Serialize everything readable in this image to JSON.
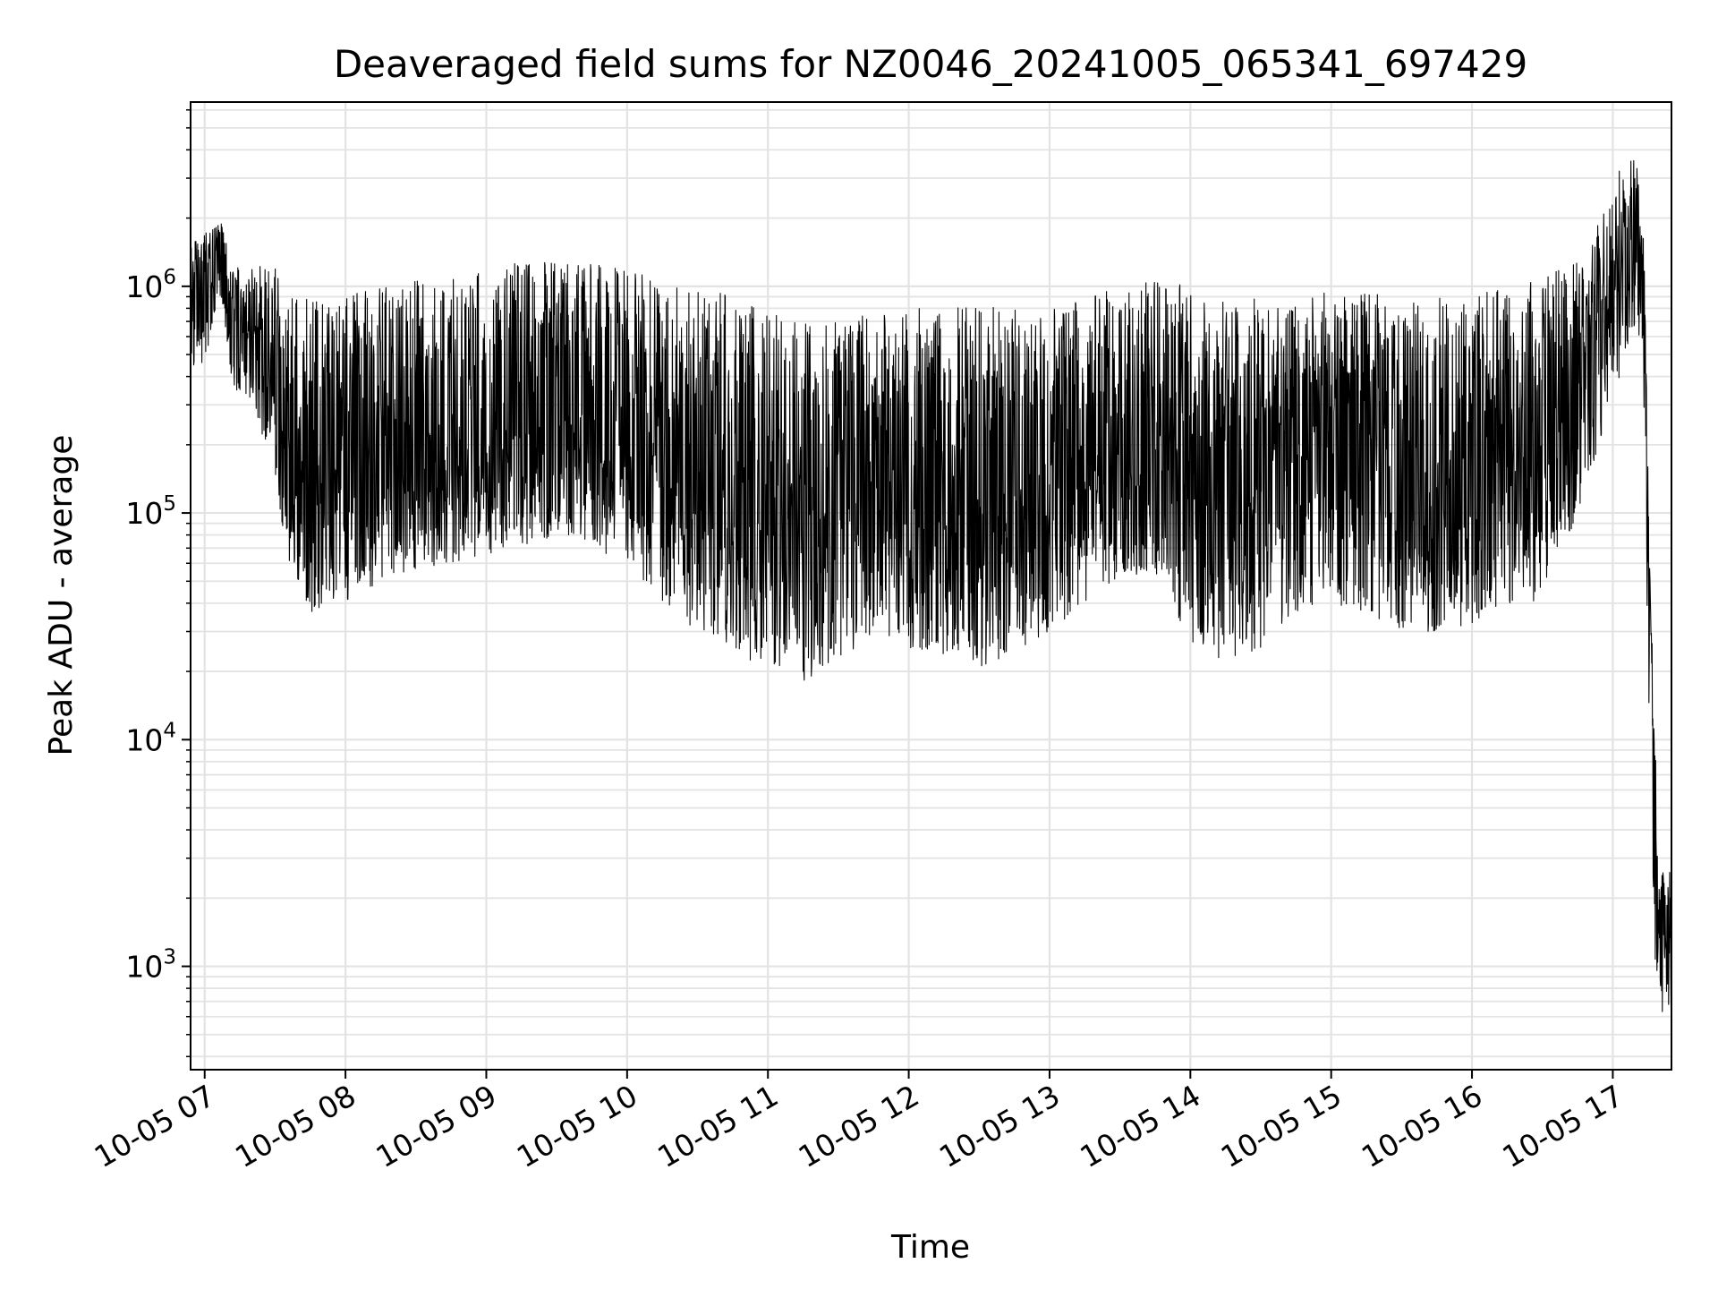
{
  "chart_data": {
    "type": "line",
    "title": "Deaveraged field sums for NZ0046_20241005_065341_697429",
    "xlabel": "Time",
    "ylabel": "Peak ADU - average",
    "y_scale": "log",
    "grid": true,
    "legend": "none",
    "xlim": [
      "2024-10-05 06:54",
      "2024-10-05 17:25"
    ],
    "ylim": [
      350,
      6500000
    ],
    "x_ticks": [
      {
        "value": "2024-10-05 07:00",
        "label": "10-05 07"
      },
      {
        "value": "2024-10-05 08:00",
        "label": "10-05 08"
      },
      {
        "value": "2024-10-05 09:00",
        "label": "10-05 09"
      },
      {
        "value": "2024-10-05 10:00",
        "label": "10-05 10"
      },
      {
        "value": "2024-10-05 11:00",
        "label": "10-05 11"
      },
      {
        "value": "2024-10-05 12:00",
        "label": "10-05 12"
      },
      {
        "value": "2024-10-05 13:00",
        "label": "10-05 13"
      },
      {
        "value": "2024-10-05 14:00",
        "label": "10-05 14"
      },
      {
        "value": "2024-10-05 15:00",
        "label": "10-05 15"
      },
      {
        "value": "2024-10-05 16:00",
        "label": "10-05 16"
      },
      {
        "value": "2024-10-05 17:00",
        "label": "10-05 17"
      }
    ],
    "y_ticks": [
      {
        "value": 1000,
        "base": "10",
        "exp": "3"
      },
      {
        "value": 10000,
        "base": "10",
        "exp": "4"
      },
      {
        "value": 100000,
        "base": "10",
        "exp": "5"
      },
      {
        "value": 1000000,
        "base": "10",
        "exp": "6"
      }
    ],
    "series": [
      {
        "color": "#000000",
        "x": [
          "2024-10-05 06:54",
          "2024-10-05 07:00",
          "2024-10-05 07:07",
          "2024-10-05 07:12",
          "2024-10-05 07:20",
          "2024-10-05 07:30",
          "2024-10-05 07:35",
          "2024-10-05 07:45",
          "2024-10-05 08:00",
          "2024-10-05 08:15",
          "2024-10-05 08:30",
          "2024-10-05 08:45",
          "2024-10-05 09:00",
          "2024-10-05 09:15",
          "2024-10-05 09:30",
          "2024-10-05 09:45",
          "2024-10-05 10:00",
          "2024-10-05 10:15",
          "2024-10-05 10:30",
          "2024-10-05 10:45",
          "2024-10-05 11:00",
          "2024-10-05 11:15",
          "2024-10-05 11:30",
          "2024-10-05 11:45",
          "2024-10-05 12:00",
          "2024-10-05 12:15",
          "2024-10-05 12:30",
          "2024-10-05 12:45",
          "2024-10-05 13:00",
          "2024-10-05 13:15",
          "2024-10-05 13:30",
          "2024-10-05 13:45",
          "2024-10-05 14:00",
          "2024-10-05 14:15",
          "2024-10-05 14:30",
          "2024-10-05 14:45",
          "2024-10-05 15:00",
          "2024-10-05 15:15",
          "2024-10-05 15:30",
          "2024-10-05 15:45",
          "2024-10-05 16:00",
          "2024-10-05 16:15",
          "2024-10-05 16:30",
          "2024-10-05 16:45",
          "2024-10-05 17:00",
          "2024-10-05 17:05",
          "2024-10-05 17:10",
          "2024-10-05 17:13",
          "2024-10-05 17:17",
          "2024-10-05 17:20",
          "2024-10-05 17:25"
        ],
        "y": [
          800000,
          900000,
          1600000,
          650000,
          650000,
          400000,
          200000,
          150000,
          130000,
          160000,
          170000,
          180000,
          220000,
          260000,
          300000,
          280000,
          220000,
          200000,
          150000,
          120000,
          90000,
          85000,
          100000,
          130000,
          110000,
          100000,
          120000,
          100000,
          100000,
          140000,
          180000,
          210000,
          160000,
          150000,
          140000,
          150000,
          160000,
          170000,
          150000,
          140000,
          150000,
          200000,
          200000,
          350000,
          1000000,
          1400000,
          1800000,
          1000000,
          8000,
          1300,
          1700
        ],
        "upper": [
          1500000,
          1800000,
          1900000,
          1200000,
          1300000,
          1200000,
          1000000,
          900000,
          900000,
          1000000,
          1100000,
          1100000,
          1200000,
          1300000,
          1300000,
          1300000,
          1200000,
          1100000,
          1000000,
          900000,
          800000,
          700000,
          700000,
          800000,
          800000,
          800000,
          850000,
          800000,
          800000,
          900000,
          1000000,
          1100000,
          1000000,
          900000,
          900000,
          900000,
          950000,
          950000,
          900000,
          900000,
          900000,
          1000000,
          1100000,
          1300000,
          2500000,
          4000000,
          3500000,
          2000000,
          20000,
          2500,
          3000
        ],
        "lower": [
          450000,
          450000,
          900000,
          350000,
          300000,
          150000,
          60000,
          35000,
          40000,
          50000,
          55000,
          60000,
          65000,
          70000,
          80000,
          75000,
          55000,
          40000,
          30000,
          25000,
          20000,
          18000,
          22000,
          30000,
          25000,
          22000,
          20000,
          22000,
          30000,
          40000,
          50000,
          55000,
          25000,
          22000,
          25000,
          35000,
          40000,
          35000,
          30000,
          30000,
          32000,
          40000,
          40000,
          100000,
          300000,
          500000,
          700000,
          400000,
          1000,
          600,
          550
        ]
      }
    ]
  }
}
